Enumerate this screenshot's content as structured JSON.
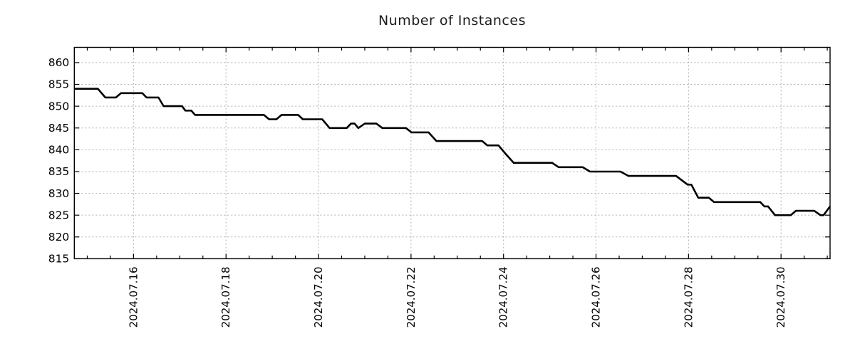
{
  "page": {
    "background": "#ffffff"
  },
  "chart_data": {
    "type": "line",
    "title": "Number of Instances",
    "xlabel": "",
    "ylabel": "",
    "legend": {
      "show": false
    },
    "grid": {
      "show": true,
      "color": "#b0b0b0",
      "dash": [
        2,
        3
      ]
    },
    "x_axis": {
      "unit": "day of July 2024",
      "xlim_days": [
        14.72,
        31.06
      ],
      "major_ticks_days": [
        16,
        18,
        20,
        22,
        24,
        26,
        28,
        30
      ],
      "major_tick_labels": [
        "2024.07.16",
        "2024.07.18",
        "2024.07.20",
        "2024.07.22",
        "2024.07.24",
        "2024.07.26",
        "2024.07.28",
        "2024.07.30"
      ],
      "minor_tick_step_days": 0.5,
      "minor_tick_range_days": [
        15.0,
        31.0
      ]
    },
    "y_axis": {
      "ylim": [
        815,
        863.5
      ],
      "ticks": [
        815,
        820,
        825,
        830,
        835,
        840,
        845,
        850,
        855,
        860
      ],
      "tick_labels": [
        "815",
        "820",
        "825",
        "830",
        "835",
        "840",
        "845",
        "850",
        "855",
        "860"
      ]
    },
    "series": [
      {
        "name": "instances",
        "color": "#000000",
        "stroke_width": 2.6,
        "points_day_value": [
          [
            14.72,
            854
          ],
          [
            15.23,
            854
          ],
          [
            15.39,
            852
          ],
          [
            15.62,
            852
          ],
          [
            15.73,
            853
          ],
          [
            16.19,
            853
          ],
          [
            16.28,
            852
          ],
          [
            16.54,
            852
          ],
          [
            16.65,
            850
          ],
          [
            17.05,
            850
          ],
          [
            17.12,
            849
          ],
          [
            17.25,
            849
          ],
          [
            17.33,
            848
          ],
          [
            18.82,
            848
          ],
          [
            18.93,
            847
          ],
          [
            19.09,
            847
          ],
          [
            19.2,
            848
          ],
          [
            19.56,
            848
          ],
          [
            19.66,
            847
          ],
          [
            20.08,
            847
          ],
          [
            20.24,
            845
          ],
          [
            20.61,
            845
          ],
          [
            20.7,
            846
          ],
          [
            20.78,
            846
          ],
          [
            20.86,
            845
          ],
          [
            21.0,
            846
          ],
          [
            21.25,
            846
          ],
          [
            21.38,
            845
          ],
          [
            21.89,
            845
          ],
          [
            22.01,
            844
          ],
          [
            22.38,
            844
          ],
          [
            22.55,
            842
          ],
          [
            23.54,
            842
          ],
          [
            23.65,
            841
          ],
          [
            23.89,
            841
          ],
          [
            24.05,
            839
          ],
          [
            24.22,
            837
          ],
          [
            25.05,
            837
          ],
          [
            25.19,
            836
          ],
          [
            25.71,
            836
          ],
          [
            25.87,
            835
          ],
          [
            26.53,
            835
          ],
          [
            26.7,
            834
          ],
          [
            27.73,
            834
          ],
          [
            27.98,
            832
          ],
          [
            28.06,
            832
          ],
          [
            28.21,
            829
          ],
          [
            28.44,
            829
          ],
          [
            28.55,
            828
          ],
          [
            29.55,
            828
          ],
          [
            29.64,
            827
          ],
          [
            29.72,
            827
          ],
          [
            29.87,
            825
          ],
          [
            30.21,
            825
          ],
          [
            30.32,
            826
          ],
          [
            30.72,
            826
          ],
          [
            30.85,
            825
          ],
          [
            30.92,
            825
          ],
          [
            31.06,
            827
          ]
        ]
      }
    ]
  }
}
